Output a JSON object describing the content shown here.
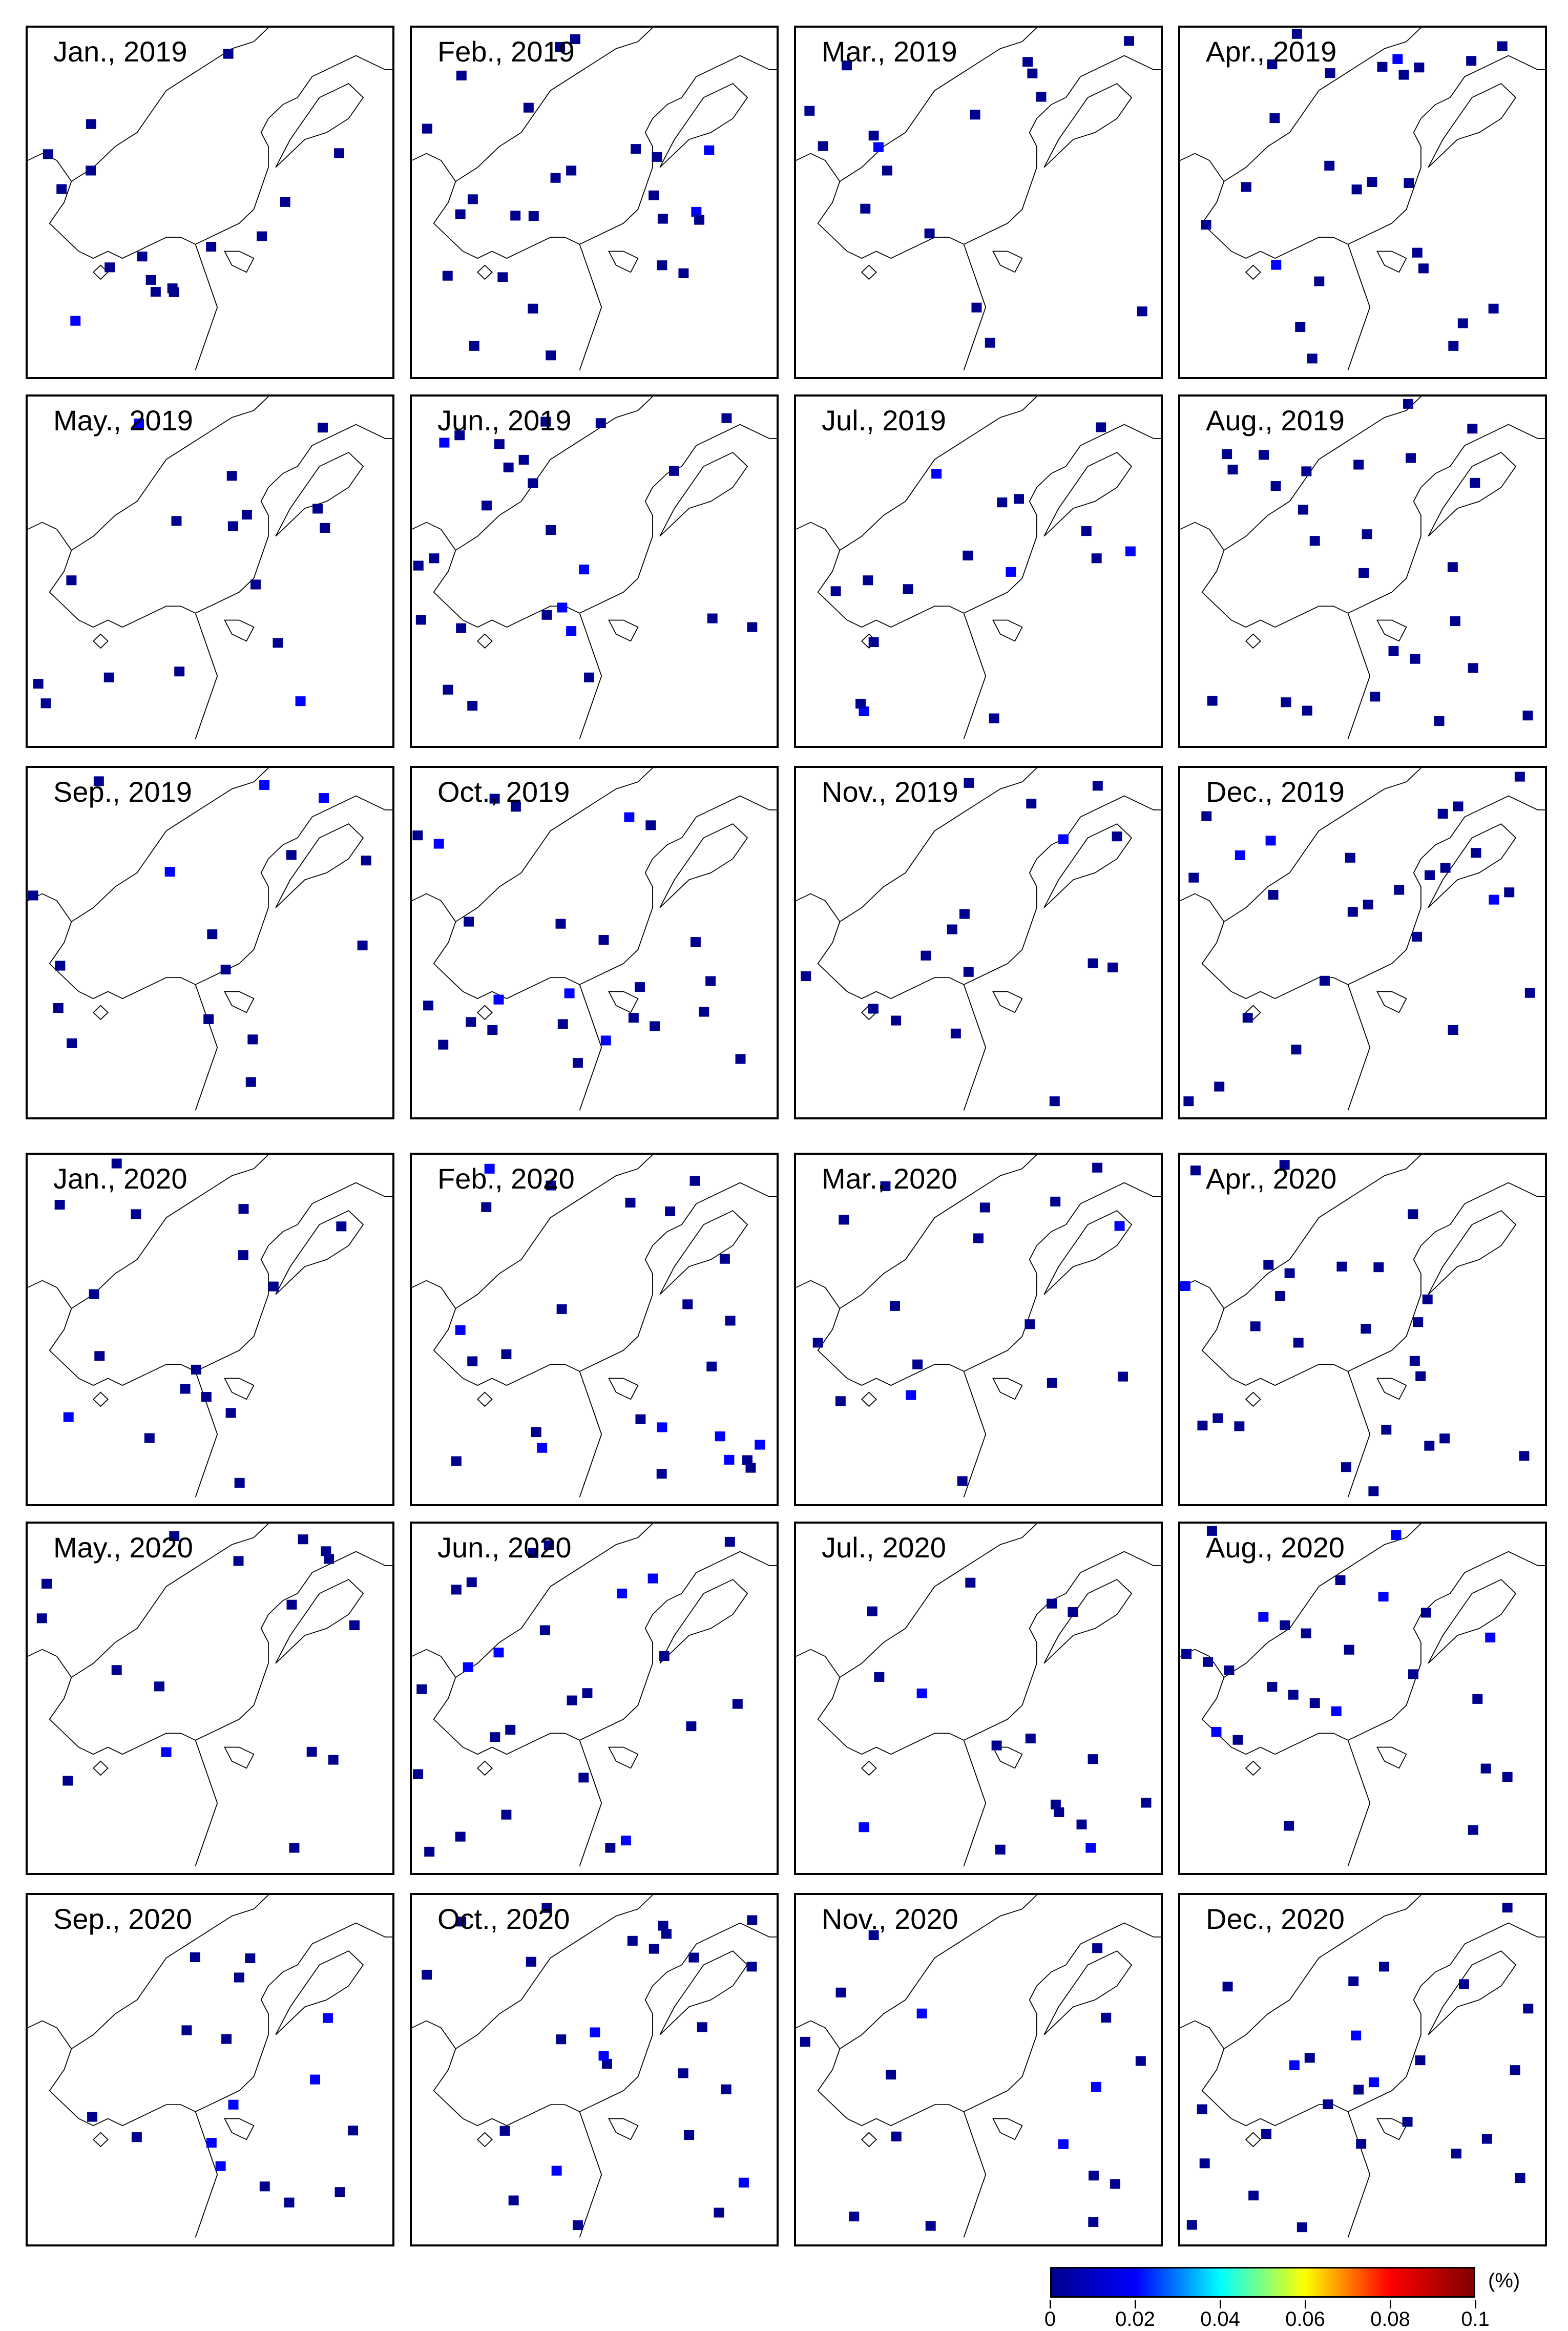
{
  "panels": [
    {
      "title": "Jan., 2019"
    },
    {
      "title": "Feb., 2019"
    },
    {
      "title": "Mar., 2019"
    },
    {
      "title": "Apr., 2019"
    },
    {
      "title": "May., 2019"
    },
    {
      "title": "Jun., 2019"
    },
    {
      "title": "Jul., 2019"
    },
    {
      "title": "Aug., 2019"
    },
    {
      "title": "Sep., 2019"
    },
    {
      "title": "Oct., 2019"
    },
    {
      "title": "Nov., 2019"
    },
    {
      "title": "Dec., 2019"
    },
    {
      "title": "Jan., 2020"
    },
    {
      "title": "Feb., 2020"
    },
    {
      "title": "Mar., 2020"
    },
    {
      "title": "Apr., 2020"
    },
    {
      "title": "May., 2020"
    },
    {
      "title": "Jun., 2020"
    },
    {
      "title": "Jul., 2020"
    },
    {
      "title": "Aug., 2020"
    },
    {
      "title": "Sep., 2020"
    },
    {
      "title": "Oct., 2020"
    },
    {
      "title": "Nov., 2020"
    },
    {
      "title": "Dec., 2020"
    }
  ],
  "colorbar": {
    "ticks": [
      "0",
      "0.02",
      "0.04",
      "0.06",
      "0.08",
      "0.1"
    ],
    "unit": "(%)",
    "colors": [
      "#00008f",
      "#0000ff",
      "#00ffff",
      "#ffff00",
      "#ff0000",
      "#800000"
    ]
  }
}
